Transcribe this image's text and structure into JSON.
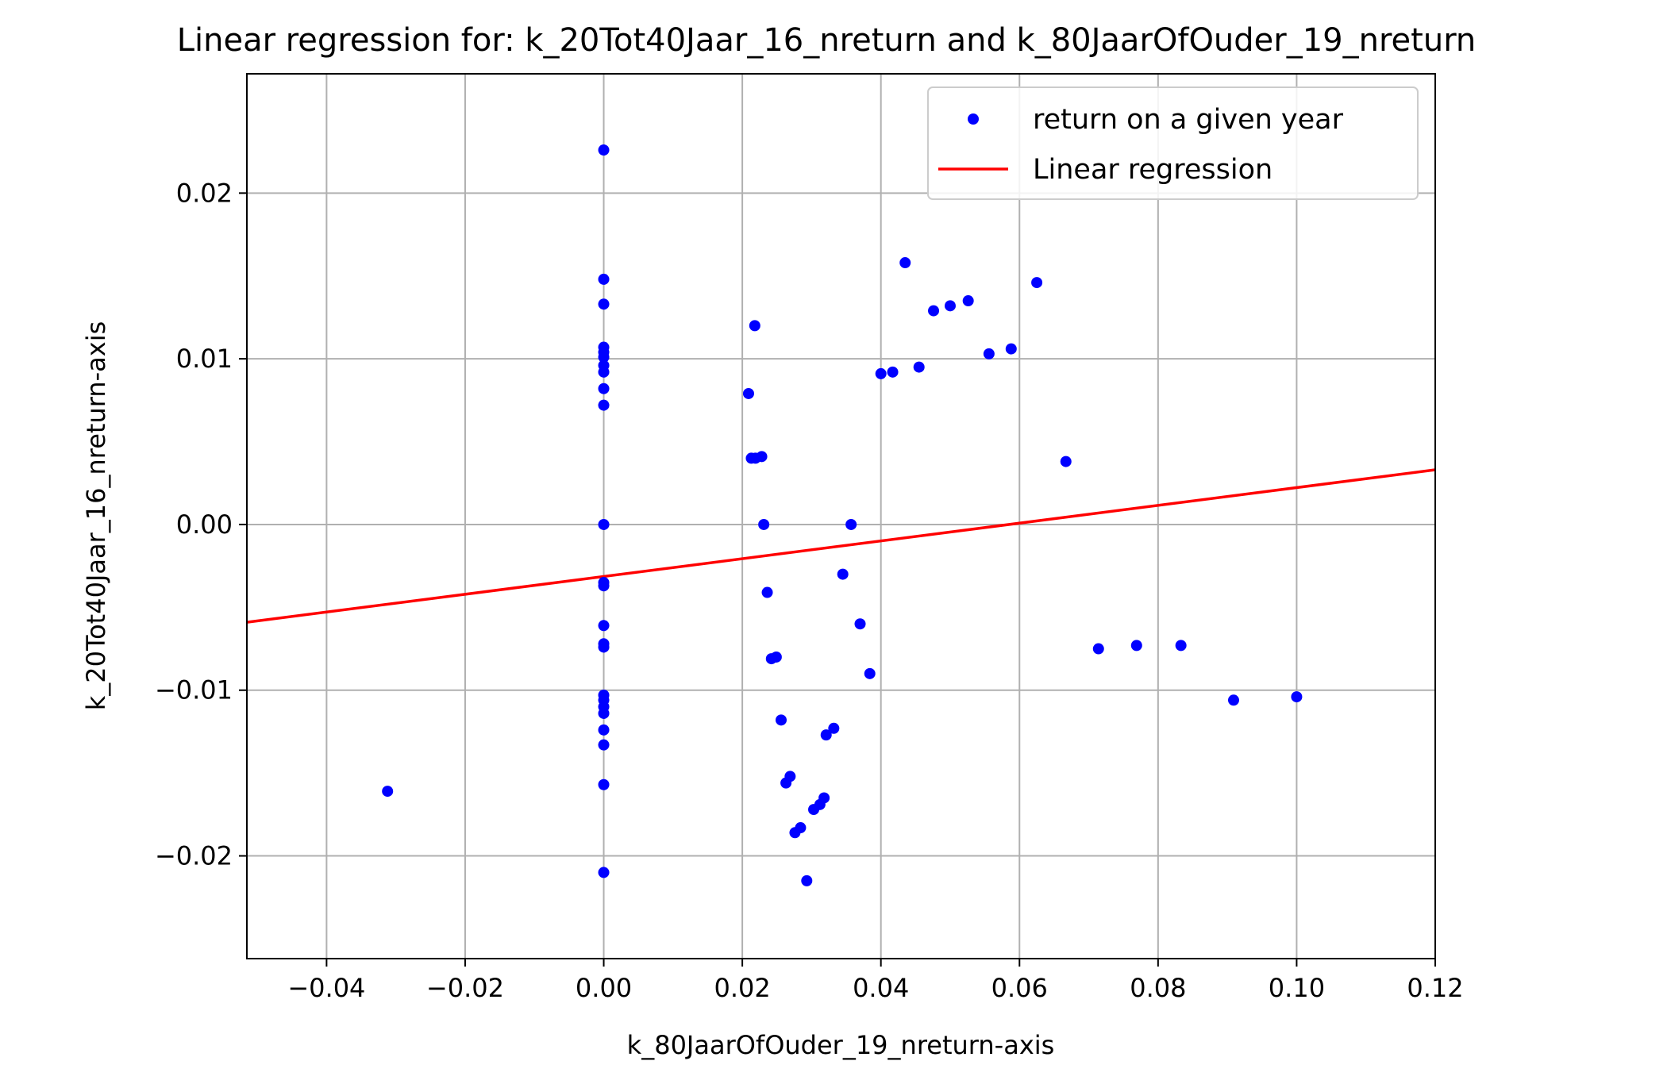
{
  "chart_data": {
    "type": "scatter",
    "title": "Linear regression for: k_20Tot40Jaar_16_nreturn and k_80JaarOfOuder_19_nreturn",
    "xlabel": "k_80JaarOfOuder_19_nreturn-axis",
    "ylabel": "k_20Tot40Jaar_16_nreturn-axis",
    "xlim": [
      -0.0515,
      0.12
    ],
    "ylim": [
      -0.0262,
      0.0272
    ],
    "x_ticks": [
      -0.04,
      -0.02,
      0.0,
      0.02,
      0.04,
      0.06,
      0.08,
      0.1,
      0.12
    ],
    "x_tick_labels": [
      "−0.04",
      "−0.02",
      "0.00",
      "0.02",
      "0.04",
      "0.06",
      "0.08",
      "0.10",
      "0.12"
    ],
    "y_ticks": [
      -0.02,
      -0.01,
      0.0,
      0.01,
      0.02
    ],
    "y_tick_labels": [
      "−0.02",
      "−0.01",
      "0.00",
      "0.01",
      "0.02"
    ],
    "grid": true,
    "legend": {
      "placement": "upper right",
      "entries": [
        {
          "label": "return on a given year",
          "kind": "marker",
          "color": "#0000ff"
        },
        {
          "label": "Linear regression",
          "kind": "line",
          "color": "#ff0000"
        }
      ]
    },
    "series": [
      {
        "name": "return on a given year",
        "kind": "scatter",
        "color": "#0000ff",
        "points": [
          [
            0.0,
            0.0226
          ],
          [
            0.0,
            0.0148
          ],
          [
            0.0,
            0.0133
          ],
          [
            0.0,
            0.0107
          ],
          [
            0.0,
            0.0104
          ],
          [
            0.0,
            0.0101
          ],
          [
            0.0,
            0.0096
          ],
          [
            0.0,
            0.0092
          ],
          [
            0.0,
            0.0082
          ],
          [
            0.0,
            0.0072
          ],
          [
            0.0,
            0.0
          ],
          [
            0.0,
            -0.0035
          ],
          [
            0.0,
            -0.0037
          ],
          [
            0.0,
            -0.0061
          ],
          [
            0.0,
            -0.0072
          ],
          [
            0.0,
            -0.0074
          ],
          [
            0.0,
            -0.0103
          ],
          [
            0.0,
            -0.0106
          ],
          [
            0.0,
            -0.011
          ],
          [
            0.0,
            -0.0114
          ],
          [
            0.0,
            -0.0124
          ],
          [
            0.0,
            -0.0133
          ],
          [
            0.0,
            -0.0157
          ],
          [
            0.0,
            -0.021
          ],
          [
            -0.0312,
            -0.0161
          ],
          [
            0.0209,
            0.0079
          ],
          [
            0.0218,
            0.012
          ],
          [
            0.0213,
            0.004
          ],
          [
            0.0219,
            0.004
          ],
          [
            0.0228,
            0.0041
          ],
          [
            0.0231,
            0.0
          ],
          [
            0.0236,
            -0.0041
          ],
          [
            0.0242,
            -0.0081
          ],
          [
            0.0249,
            -0.008
          ],
          [
            0.0256,
            -0.0118
          ],
          [
            0.0263,
            -0.0156
          ],
          [
            0.0269,
            -0.0152
          ],
          [
            0.0276,
            -0.0186
          ],
          [
            0.0284,
            -0.0183
          ],
          [
            0.0293,
            -0.0215
          ],
          [
            0.0303,
            -0.0172
          ],
          [
            0.0312,
            -0.0169
          ],
          [
            0.0318,
            -0.0165
          ],
          [
            0.0321,
            -0.0127
          ],
          [
            0.0332,
            -0.0123
          ],
          [
            0.0345,
            -0.003
          ],
          [
            0.0357,
            0.0
          ],
          [
            0.037,
            -0.006
          ],
          [
            0.0384,
            -0.009
          ],
          [
            0.04,
            0.0091
          ],
          [
            0.0417,
            0.0092
          ],
          [
            0.0435,
            0.0158
          ],
          [
            0.0455,
            0.0095
          ],
          [
            0.0476,
            0.0129
          ],
          [
            0.05,
            0.0132
          ],
          [
            0.0526,
            0.0135
          ],
          [
            0.0556,
            0.0103
          ],
          [
            0.0588,
            0.0106
          ],
          [
            0.0625,
            0.0146
          ],
          [
            0.0667,
            0.0038
          ],
          [
            0.0714,
            -0.0075
          ],
          [
            0.0769,
            -0.0073
          ],
          [
            0.0833,
            -0.0073
          ],
          [
            0.0909,
            -0.0106
          ],
          [
            0.1,
            -0.0104
          ]
        ]
      },
      {
        "name": "Linear regression",
        "kind": "line",
        "color": "#ff0000",
        "points": [
          [
            -0.0515,
            -0.0059
          ],
          [
            0.12,
            0.0033
          ]
        ]
      }
    ]
  }
}
